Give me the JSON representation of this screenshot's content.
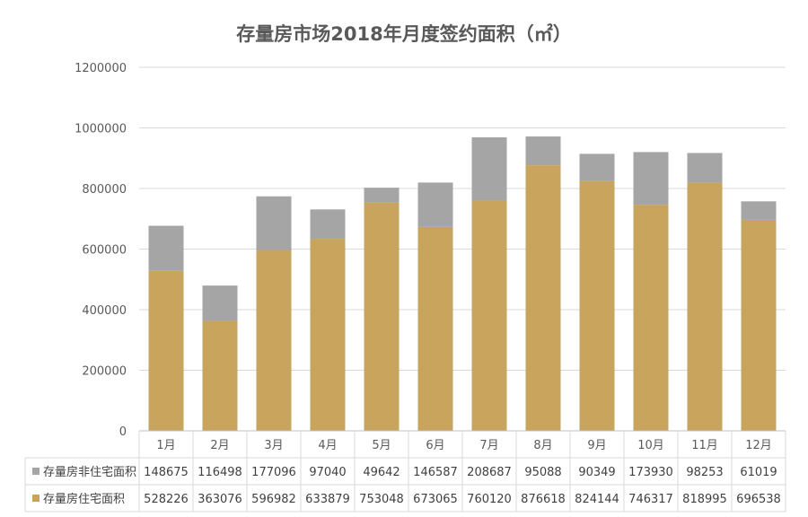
{
  "chart_data": {
    "type": "bar",
    "stacked": true,
    "title": "存量房市场2018年月度签约面积（㎡）",
    "categories": [
      "1月",
      "2月",
      "3月",
      "4月",
      "5月",
      "6月",
      "7月",
      "8月",
      "9月",
      "10月",
      "11月",
      "12月"
    ],
    "ylim": [
      0,
      1200000
    ],
    "yticks": [
      0,
      200000,
      400000,
      600000,
      800000,
      1000000,
      1200000
    ],
    "ytick_labels": [
      "0",
      "200000",
      "400000",
      "600000",
      "800000",
      "1000000",
      "1200000"
    ],
    "grid": true,
    "legend_position": "data-table",
    "series": [
      {
        "name": "存量房住宅面积",
        "color": "#c9a45c",
        "values": [
          528226,
          363076,
          596982,
          633879,
          753048,
          673065,
          760120,
          876618,
          824144,
          746317,
          818995,
          696538
        ]
      },
      {
        "name": "存量房非住宅面积",
        "color": "#a5a5a5",
        "values": [
          148675,
          116498,
          177096,
          97040,
          49642,
          146587,
          208687,
          95088,
          90349,
          173930,
          98253,
          61019
        ]
      }
    ],
    "table_rows": [
      {
        "label": "存量房非住宅面积",
        "color": "#a5a5a5",
        "values": [
          "148675",
          "116498",
          "177096",
          "97040",
          "49642",
          "146587",
          "208687",
          "95088",
          "90349",
          "173930",
          "98253",
          "61019"
        ]
      },
      {
        "label": "存量房住宅面积",
        "color": "#c9a45c",
        "values": [
          "528226",
          "363076",
          "596982",
          "633879",
          "753048",
          "673065",
          "760120",
          "876618",
          "824144",
          "746317",
          "818995",
          "696538"
        ]
      }
    ]
  }
}
